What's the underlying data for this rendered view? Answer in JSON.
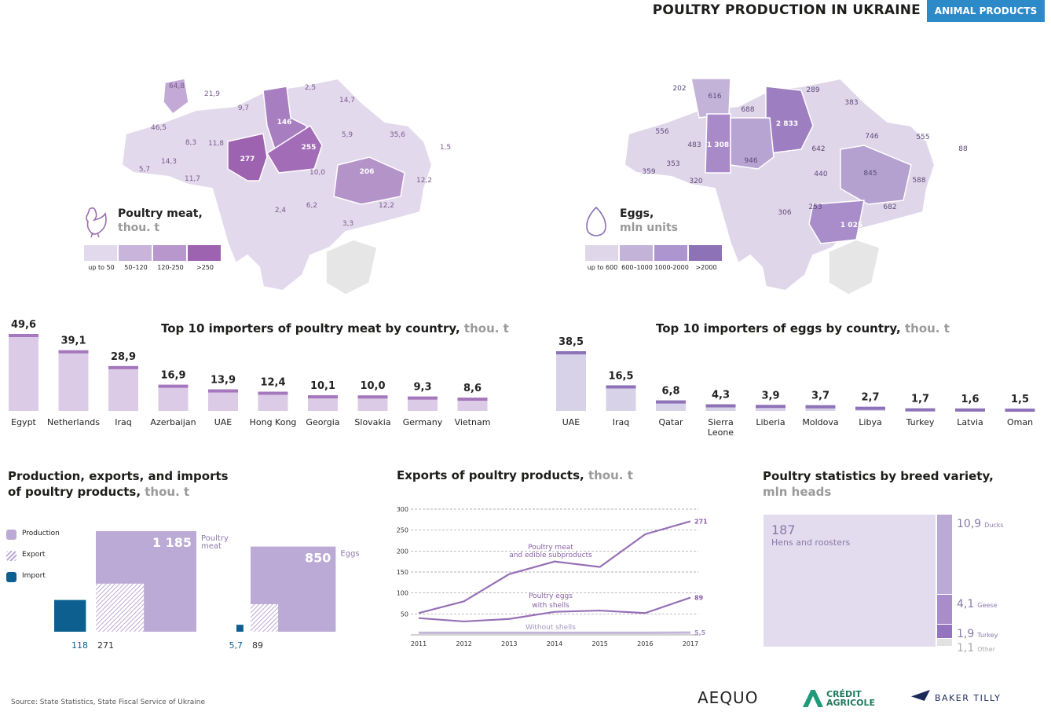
{
  "header": {
    "title": "POULTRY PRODUCTION IN UKRAINE",
    "tag": "ANIMAL PRODUCTS"
  },
  "colors": {
    "accent": "#2c8ac8",
    "purple_dark": "#9a6cb0",
    "purple_mid": "#b9a2cc",
    "purple_light": "#dcd0e6",
    "import_blue": "#0d5f8f",
    "grid": "#999999"
  },
  "maps": {
    "meat": {
      "title": "Poultry meat,",
      "unit": "thou. t",
      "icon": "chicken-icon",
      "legend": [
        "up to 50",
        "50–120",
        "120-250",
        ">250"
      ],
      "region_values": [
        "64,8",
        "21,9",
        "9,7",
        "2,5",
        "14,7",
        "46,5",
        "8,3",
        "11,8",
        "146",
        "5,9",
        "35,6",
        "1,5",
        "14,3",
        "5,7",
        "11,7",
        "277",
        "255",
        "10,0",
        "206",
        "12,2",
        "2,4",
        "6,2",
        "12,2",
        "3,3"
      ]
    },
    "eggs": {
      "title": "Eggs,",
      "unit": "mln units",
      "icon": "egg-icon",
      "legend": [
        "up to 600",
        "600–1000",
        "1000-2000",
        ">2000"
      ],
      "region_values": [
        "202",
        "616",
        "688",
        "289",
        "383",
        "556",
        "483",
        "1 308",
        "2 833",
        "642",
        "746",
        "555",
        "88",
        "359",
        "353",
        "946",
        "320",
        "440",
        "845",
        "588",
        "306",
        "253",
        "682",
        "1 025"
      ]
    }
  },
  "chart_data": [
    {
      "type": "bar",
      "title": "Top 10 importers of poultry meat by country,",
      "unit": "thou. t",
      "categories": [
        "Egypt",
        "Netherlands",
        "Iraq",
        "Azerbaijan",
        "UAE",
        "Hong Kong",
        "Georgia",
        "Slovakia",
        "Germany",
        "Vietnam"
      ],
      "values": [
        49.6,
        39.1,
        28.9,
        16.9,
        13.9,
        12.4,
        10.1,
        10.0,
        9.3,
        8.6
      ],
      "labels": [
        "49,6",
        "39,1",
        "28,9",
        "16,9",
        "13,9",
        "12,4",
        "10,1",
        "10,0",
        "9,3",
        "8,6"
      ]
    },
    {
      "type": "bar",
      "title": "Top 10 importers of eggs by country,",
      "unit": "thou. t",
      "categories": [
        "UAE",
        "Iraq",
        "Qatar",
        "Sierra Leone",
        "Liberia",
        "Moldova",
        "Libya",
        "Turkey",
        "Latvia",
        "Oman"
      ],
      "values": [
        38.5,
        16.5,
        6.8,
        4.3,
        3.9,
        3.7,
        2.7,
        1.7,
        1.6,
        1.5
      ],
      "labels": [
        "38,5",
        "16,5",
        "6,8",
        "4,3",
        "3,9",
        "3,7",
        "2,7",
        "1,7",
        "1,6",
        "1,5"
      ]
    },
    {
      "type": "area",
      "title_line1": "Production, exports, and imports",
      "title_line2": "of poultry products,",
      "unit": "thou. t",
      "legend": [
        "Production",
        "Export",
        "Import"
      ],
      "groups": [
        {
          "name": "Poultry meat",
          "production": 1185,
          "export": 271,
          "import": 118,
          "production_label": "1 185",
          "export_label": "271",
          "import_label": "118"
        },
        {
          "name": "Eggs",
          "production": 850,
          "export": 89,
          "import": 5.7,
          "production_label": "850",
          "export_label": "89",
          "import_label": "5,7"
        }
      ]
    },
    {
      "type": "line",
      "title": "Exports of poultry products,",
      "unit": "thou. t",
      "x": [
        2011,
        2012,
        2013,
        2014,
        2015,
        2016,
        2017
      ],
      "ylim": [
        0,
        300
      ],
      "yticks": [
        50,
        100,
        150,
        200,
        250,
        300
      ],
      "series": [
        {
          "name": "Poultry meat and edible subproducts",
          "values": [
            52,
            80,
            145,
            175,
            162,
            240,
            271
          ],
          "end_label": "271"
        },
        {
          "name": "Poultry eggs with shells",
          "values": [
            40,
            32,
            38,
            55,
            58,
            52,
            89
          ],
          "end_label": "89"
        },
        {
          "name": "Without shells",
          "values": [
            5,
            5,
            5,
            5,
            5,
            5,
            5.5
          ],
          "end_label": "5,5"
        }
      ]
    },
    {
      "type": "treemap",
      "title_line1": "Poultry statistics by breed variety,",
      "title_line2": "mln heads",
      "items": [
        {
          "name": "Hens and roosters",
          "value": 187,
          "label": "187"
        },
        {
          "name": "Ducks",
          "value": 10.9,
          "label": "10,9"
        },
        {
          "name": "Geese",
          "value": 4.1,
          "label": "4,1"
        },
        {
          "name": "Turkey",
          "value": 1.9,
          "label": "1,9"
        },
        {
          "name": "Other",
          "value": 1.1,
          "label": "1,1"
        }
      ]
    }
  ],
  "footer": {
    "source": "Source: State Statistics, State Fiscal Service of Ukraine",
    "logos": [
      "AEQUO",
      "CRÉDIT AGRICOLE",
      "BAKER TILLY"
    ]
  }
}
